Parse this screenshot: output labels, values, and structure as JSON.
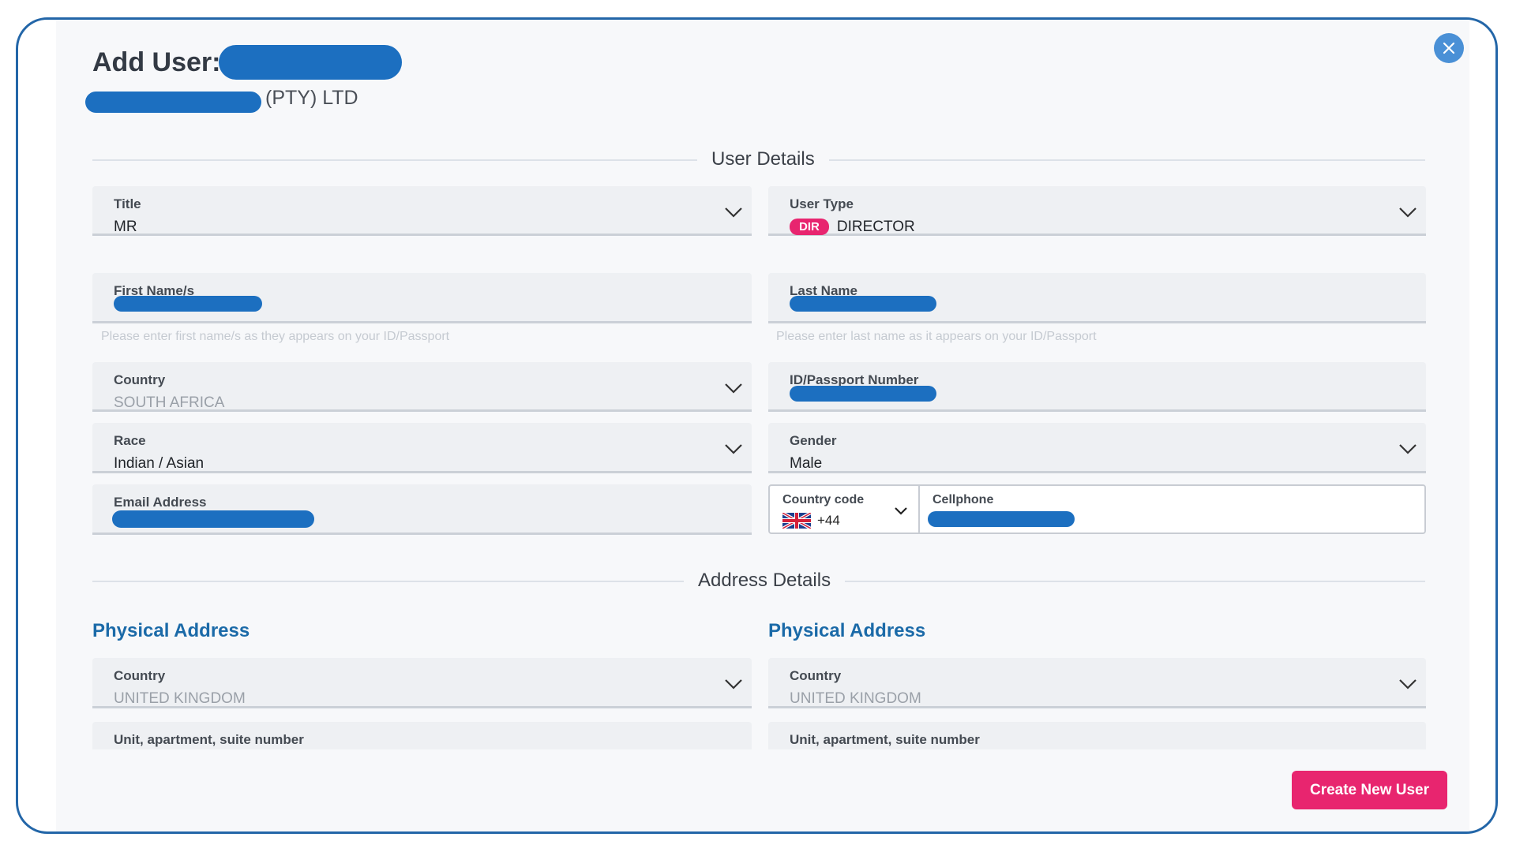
{
  "dialog": {
    "title": "Add User:",
    "company_suffix": "(PTY) LTD",
    "close_icon": "close-icon"
  },
  "sections": {
    "user_details": "User Details",
    "address_details": "Address Details"
  },
  "fields": {
    "title": {
      "label": "Title",
      "value": "MR"
    },
    "user_type": {
      "label": "User Type",
      "badge": "DIR",
      "value": "DIRECTOR"
    },
    "first_name": {
      "label": "First Name/s",
      "hint": "Please enter first name/s as they appears on your ID/Passport"
    },
    "last_name": {
      "label": "Last Name",
      "hint": "Please enter last name as it appears on your ID/Passport"
    },
    "country": {
      "label": "Country",
      "value": "SOUTH AFRICA"
    },
    "id_passport": {
      "label": "ID/Passport Number"
    },
    "race": {
      "label": "Race",
      "value": "Indian / Asian"
    },
    "gender": {
      "label": "Gender",
      "value": "Male"
    },
    "email": {
      "label": "Email Address"
    },
    "country_code": {
      "label": "Country code",
      "value": "+44",
      "flag_icon": "uk-flag-icon"
    },
    "cellphone": {
      "label": "Cellphone"
    }
  },
  "address": {
    "left": {
      "heading": "Physical Address",
      "country_label": "Country",
      "country_value": "UNITED KINGDOM",
      "unit_label": "Unit, apartment, suite number"
    },
    "right": {
      "heading": "Physical Address",
      "country_label": "Country",
      "country_value": "UNITED KINGDOM",
      "unit_label": "Unit, apartment, suite number"
    }
  },
  "actions": {
    "create_label": "Create New User"
  },
  "colors": {
    "accent_blue": "#1b6aa8",
    "redaction_blue": "#1c6fc0",
    "primary_pink": "#e8256f",
    "close_blue": "#4a90d6"
  }
}
